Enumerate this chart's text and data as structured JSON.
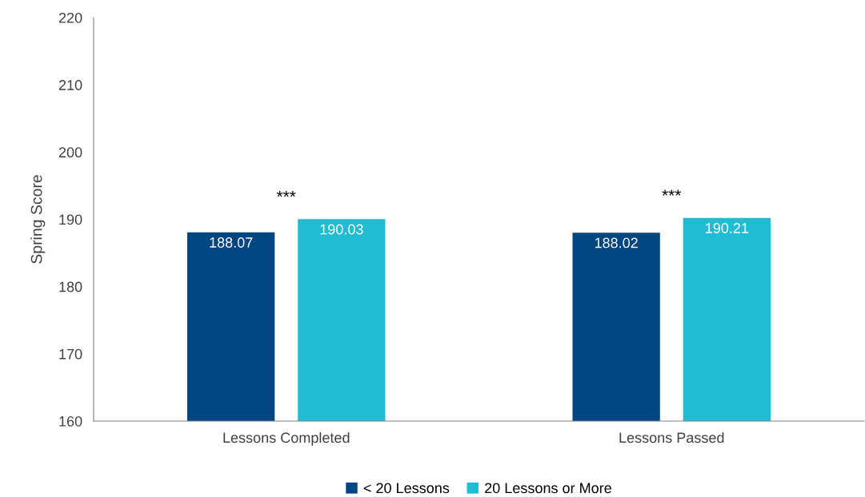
{
  "chart_data": {
    "type": "bar",
    "ylabel": "Spring Score",
    "categories": [
      "Lessons Completed",
      "Lessons Passed"
    ],
    "series": [
      {
        "name": "< 20 Lessons",
        "color": "#004680",
        "values": [
          188.07,
          188.02
        ]
      },
      {
        "name": "20 Lessons or More",
        "color": "#21bcd2",
        "values": [
          190.03,
          190.21
        ]
      }
    ],
    "ylim": [
      160,
      220
    ],
    "yticks": [
      160,
      170,
      180,
      190,
      200,
      210,
      220
    ],
    "data_labels": true,
    "legend": "bottom",
    "grid": false,
    "annotations": [
      "***",
      "***"
    ]
  }
}
